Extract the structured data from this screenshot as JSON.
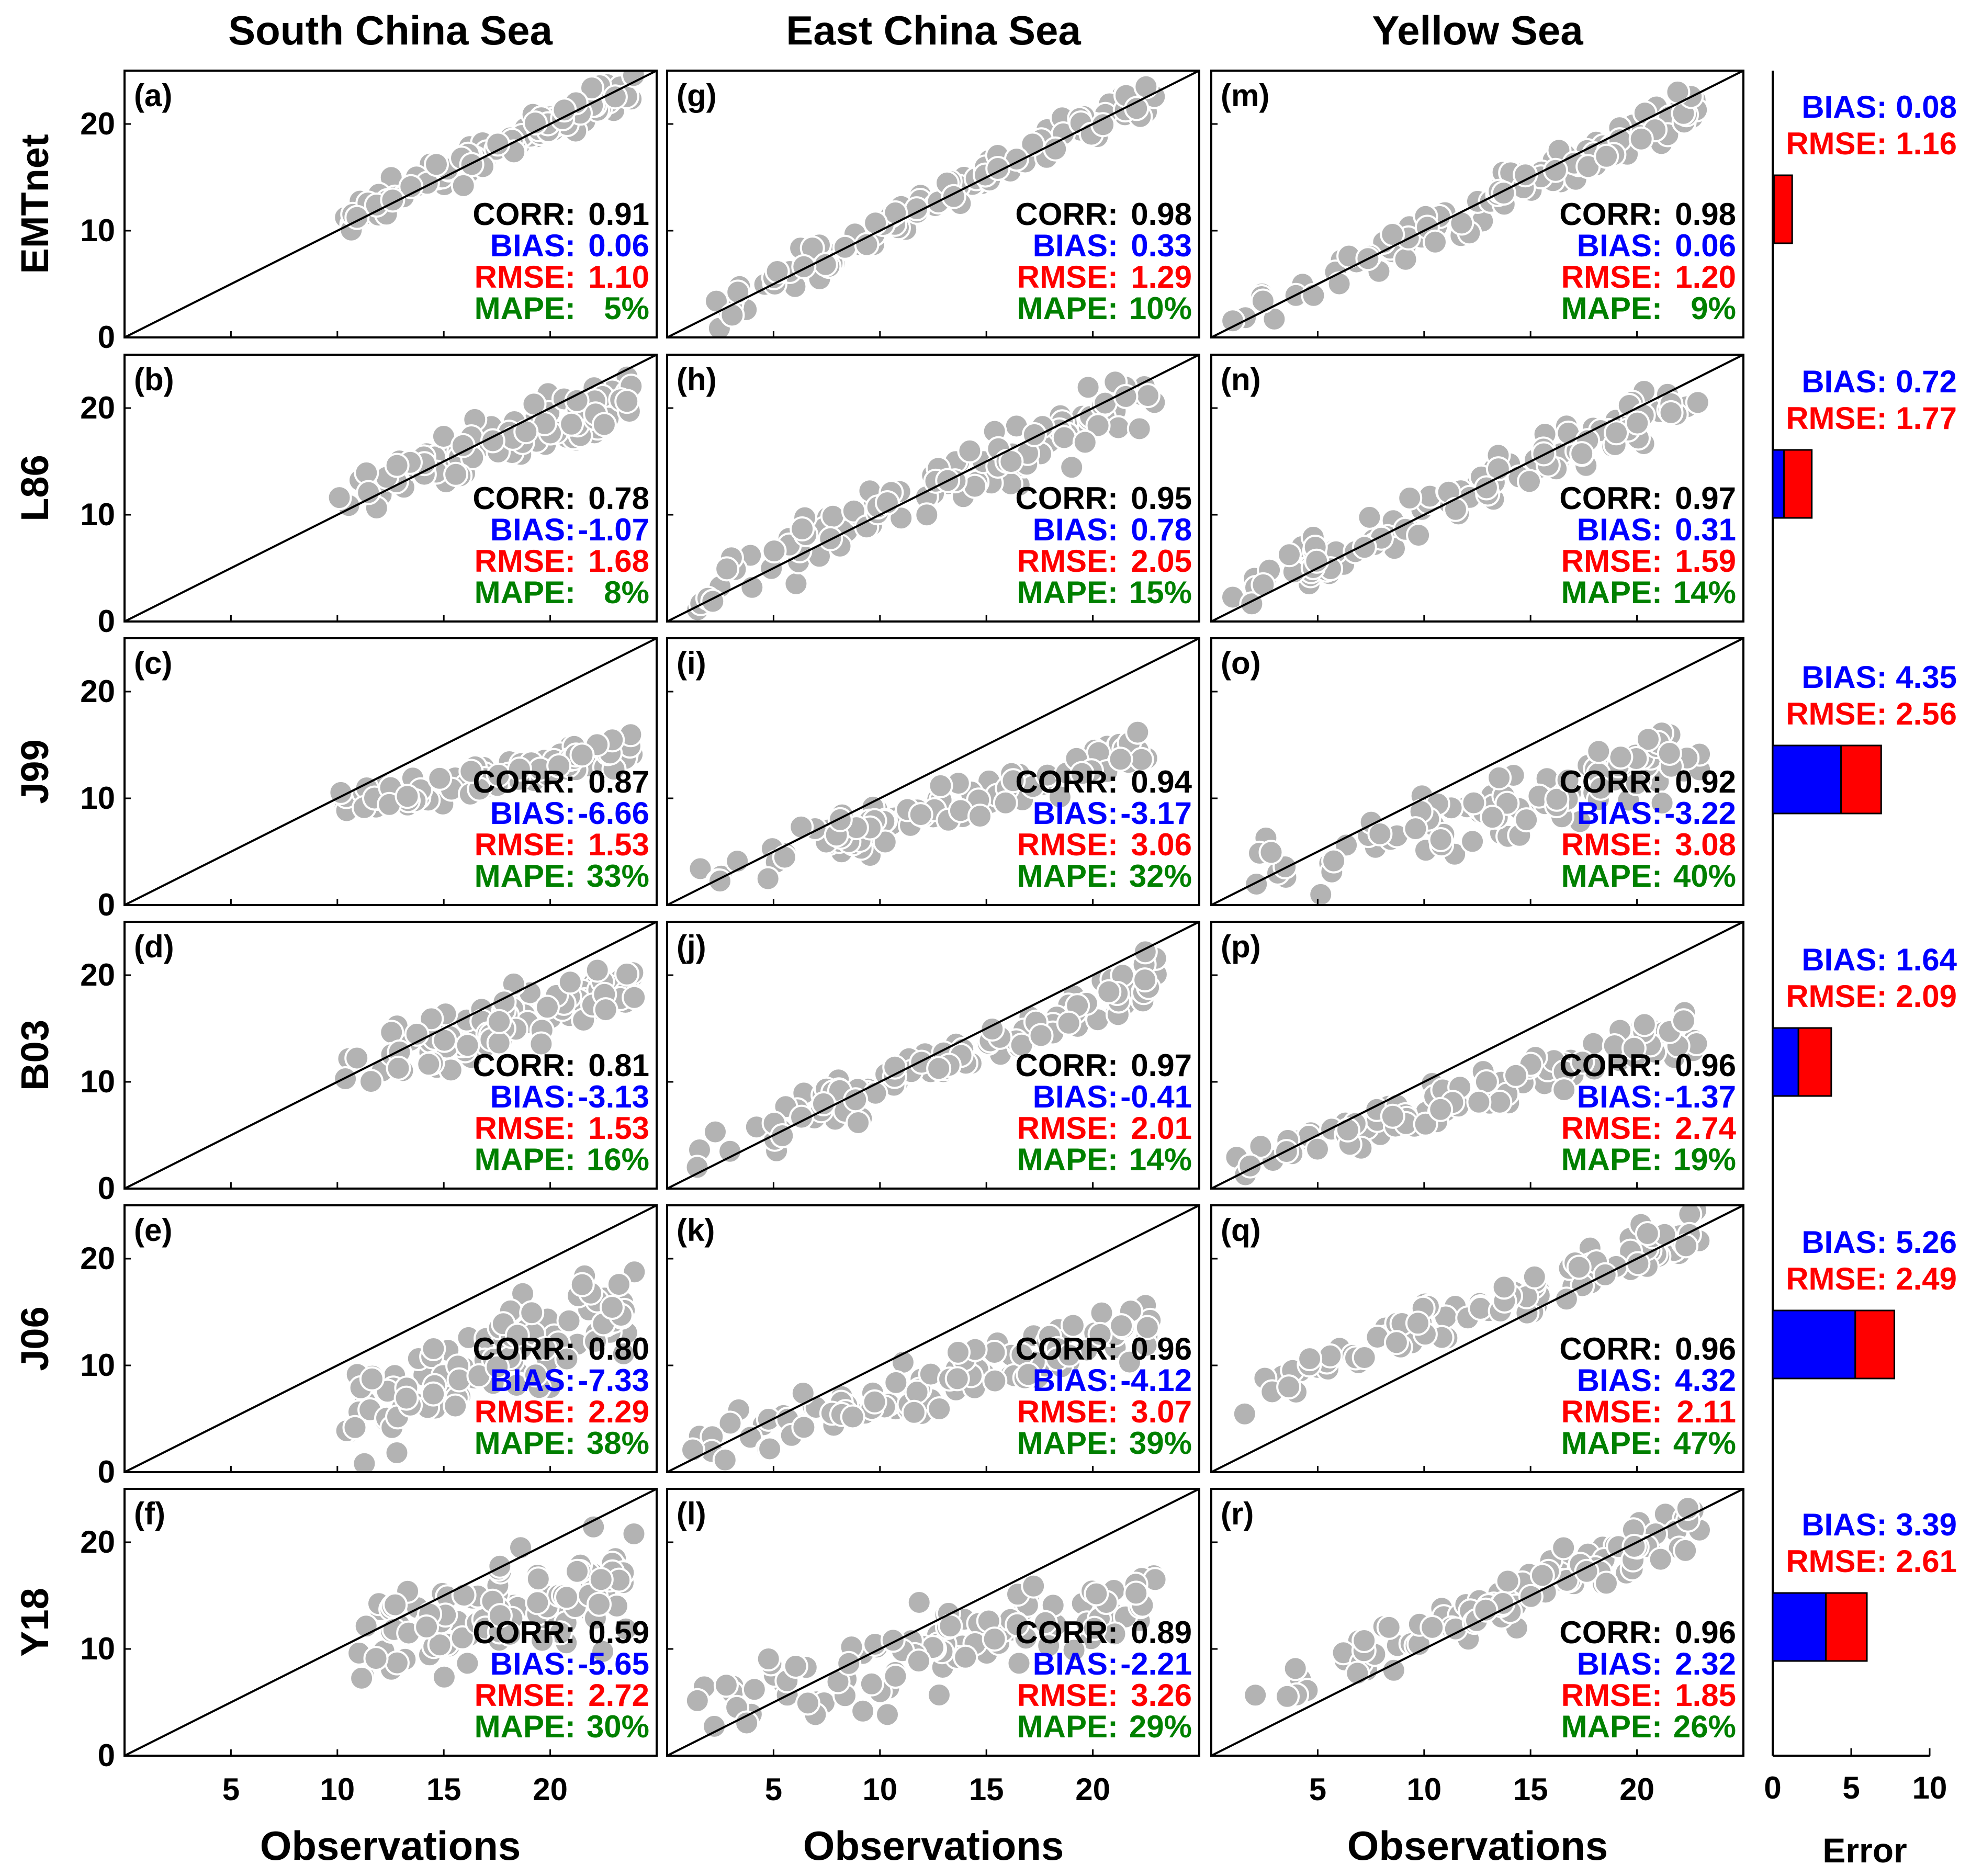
{
  "columns": [
    "South China Sea",
    "East China Sea",
    "Yellow Sea"
  ],
  "rows": [
    "EMTnet",
    "L86",
    "J99",
    "B03",
    "J06",
    "Y18"
  ],
  "xlabel": "Observations",
  "xlabel_bar": "Error",
  "colors": {
    "corr": "#000000",
    "bias": "#0000ff",
    "rmse": "#ff0000",
    "mape": "#008000",
    "marker": "#b3b3b3",
    "marker_edge": "#ffffff"
  },
  "metric_labels": {
    "corr": "CORR:",
    "bias": "BIAS:",
    "rmse": "RMSE:",
    "mape": "MAPE:"
  },
  "chart_data": {
    "type": "scatter",
    "axes": {
      "x_range": [
        0,
        25
      ],
      "y_range": [
        0,
        25
      ],
      "x_ticks": [
        5,
        10,
        15,
        20
      ],
      "y_ticks": [
        0,
        10,
        20
      ],
      "reference_line": "1:1"
    },
    "panels": [
      {
        "id": "(a)",
        "row": 0,
        "col": 0,
        "corr": "0.91",
        "bias": "0.06",
        "rmse": "1.10",
        "mape": "5%",
        "seed": 11,
        "slope": 0.92,
        "intercept": 1.5,
        "noise": 1.0,
        "xr": [
          10,
          24
        ]
      },
      {
        "id": "(b)",
        "row": 1,
        "col": 0,
        "corr": "0.78",
        "bias": "-1.07",
        "rmse": "1.68",
        "mape": "8%",
        "seed": 12,
        "slope": 0.7,
        "intercept": 4.5,
        "noise": 1.6,
        "xr": [
          10,
          24
        ]
      },
      {
        "id": "(c)",
        "row": 2,
        "col": 0,
        "corr": "0.87",
        "bias": "-6.66",
        "rmse": "1.53",
        "mape": "33%",
        "seed": 13,
        "slope": 0.38,
        "intercept": 5.5,
        "noise": 0.9,
        "xr": [
          10,
          24
        ]
      },
      {
        "id": "(d)",
        "row": 3,
        "col": 0,
        "corr": "0.81",
        "bias": "-3.13",
        "rmse": "1.53",
        "mape": "16%",
        "seed": 14,
        "slope": 0.6,
        "intercept": 4.8,
        "noise": 1.6,
        "xr": [
          10,
          24
        ]
      },
      {
        "id": "(e)",
        "row": 4,
        "col": 0,
        "corr": "0.80",
        "bias": "-7.33",
        "rmse": "2.29",
        "mape": "38%",
        "seed": 15,
        "slope": 0.75,
        "intercept": -2.5,
        "noise": 2.6,
        "xr": [
          10,
          24
        ]
      },
      {
        "id": "(f)",
        "row": 5,
        "col": 0,
        "corr": "0.59",
        "bias": "-5.65",
        "rmse": "2.72",
        "mape": "30%",
        "seed": 16,
        "slope": 0.55,
        "intercept": 3.5,
        "noise": 2.8,
        "xr": [
          10,
          24
        ]
      },
      {
        "id": "(g)",
        "row": 0,
        "col": 1,
        "corr": "0.98",
        "bias": "0.33",
        "rmse": "1.29",
        "mape": "10%",
        "seed": 21,
        "slope": 0.98,
        "intercept": 0.3,
        "noise": 1.1,
        "xr": [
          1,
          23
        ]
      },
      {
        "id": "(h)",
        "row": 1,
        "col": 1,
        "corr": "0.95",
        "bias": "0.78",
        "rmse": "2.05",
        "mape": "15%",
        "seed": 22,
        "slope": 0.85,
        "intercept": 1.8,
        "noise": 1.8,
        "xr": [
          1,
          23
        ]
      },
      {
        "id": "(i)",
        "row": 2,
        "col": 1,
        "corr": "0.94",
        "bias": "-3.17",
        "rmse": "3.06",
        "mape": "32%",
        "seed": 23,
        "slope": 0.58,
        "intercept": 1.6,
        "noise": 1.4,
        "xr": [
          1,
          23
        ]
      },
      {
        "id": "(j)",
        "row": 3,
        "col": 1,
        "corr": "0.97",
        "bias": "-0.41",
        "rmse": "2.01",
        "mape": "14%",
        "seed": 24,
        "slope": 0.8,
        "intercept": 1.5,
        "noise": 1.4,
        "xr": [
          1,
          23
        ]
      },
      {
        "id": "(k)",
        "row": 4,
        "col": 1,
        "corr": "0.96",
        "bias": "-4.12",
        "rmse": "3.07",
        "mape": "39%",
        "seed": 25,
        "slope": 0.55,
        "intercept": 1.2,
        "noise": 1.4,
        "xr": [
          1,
          23
        ]
      },
      {
        "id": "(l)",
        "row": 5,
        "col": 1,
        "corr": "0.89",
        "bias": "-2.21",
        "rmse": "3.26",
        "mape": "29%",
        "seed": 26,
        "slope": 0.5,
        "intercept": 3.8,
        "noise": 2.4,
        "xr": [
          1,
          23
        ]
      },
      {
        "id": "(m)",
        "row": 0,
        "col": 2,
        "corr": "0.98",
        "bias": "0.06",
        "rmse": "1.20",
        "mape": "9%",
        "seed": 31,
        "slope": 0.93,
        "intercept": 0.6,
        "noise": 1.1,
        "xr": [
          1,
          23
        ]
      },
      {
        "id": "(n)",
        "row": 1,
        "col": 2,
        "corr": "0.97",
        "bias": "0.31",
        "rmse": "1.59",
        "mape": "14%",
        "seed": 32,
        "slope": 0.88,
        "intercept": 1.4,
        "noise": 1.3,
        "xr": [
          1,
          23
        ]
      },
      {
        "id": "(o)",
        "row": 2,
        "col": 2,
        "corr": "0.92",
        "bias": "-3.22",
        "rmse": "3.08",
        "mape": "40%",
        "seed": 33,
        "slope": 0.55,
        "intercept": 1.8,
        "noise": 2.0,
        "xr": [
          1,
          23
        ]
      },
      {
        "id": "(p)",
        "row": 3,
        "col": 2,
        "corr": "0.96",
        "bias": "-1.37",
        "rmse": "2.74",
        "mape": "19%",
        "seed": 34,
        "slope": 0.58,
        "intercept": 1.8,
        "noise": 1.2,
        "xr": [
          1,
          23
        ]
      },
      {
        "id": "(q)",
        "row": 4,
        "col": 2,
        "corr": "0.96",
        "bias": "4.32",
        "rmse": "2.11",
        "mape": "47%",
        "seed": 35,
        "slope": 0.7,
        "intercept": 6.5,
        "noise": 1.2,
        "xr": [
          1,
          23
        ]
      },
      {
        "id": "(r)",
        "row": 5,
        "col": 2,
        "corr": "0.96",
        "bias": "2.32",
        "rmse": "1.85",
        "mape": "26%",
        "seed": 36,
        "slope": 0.8,
        "intercept": 3.5,
        "noise": 1.5,
        "xr": [
          1,
          23
        ]
      }
    ],
    "error_bars": {
      "type": "bar",
      "x_range": [
        0,
        10
      ],
      "x_ticks": [
        0,
        5,
        10
      ],
      "items": [
        {
          "model": "EMTnet",
          "bias": 0.08,
          "rmse": 1.16,
          "bias_label": "BIAS: 0.08",
          "rmse_label": "RMSE: 1.16"
        },
        {
          "model": "L86",
          "bias": 0.72,
          "rmse": 1.77,
          "bias_label": "BIAS: 0.72",
          "rmse_label": "RMSE: 1.77"
        },
        {
          "model": "J99",
          "bias": 4.35,
          "rmse": 2.56,
          "bias_label": "BIAS: 4.35",
          "rmse_label": "RMSE: 2.56"
        },
        {
          "model": "B03",
          "bias": 1.64,
          "rmse": 2.09,
          "bias_label": "BIAS: 1.64",
          "rmse_label": "RMSE: 2.09"
        },
        {
          "model": "J06",
          "bias": 5.26,
          "rmse": 2.49,
          "bias_label": "BIAS: 5.26",
          "rmse_label": "RMSE: 2.49"
        },
        {
          "model": "Y18",
          "bias": 3.39,
          "rmse": 2.61,
          "bias_label": "BIAS: 3.39",
          "rmse_label": "RMSE: 2.61"
        }
      ]
    }
  }
}
